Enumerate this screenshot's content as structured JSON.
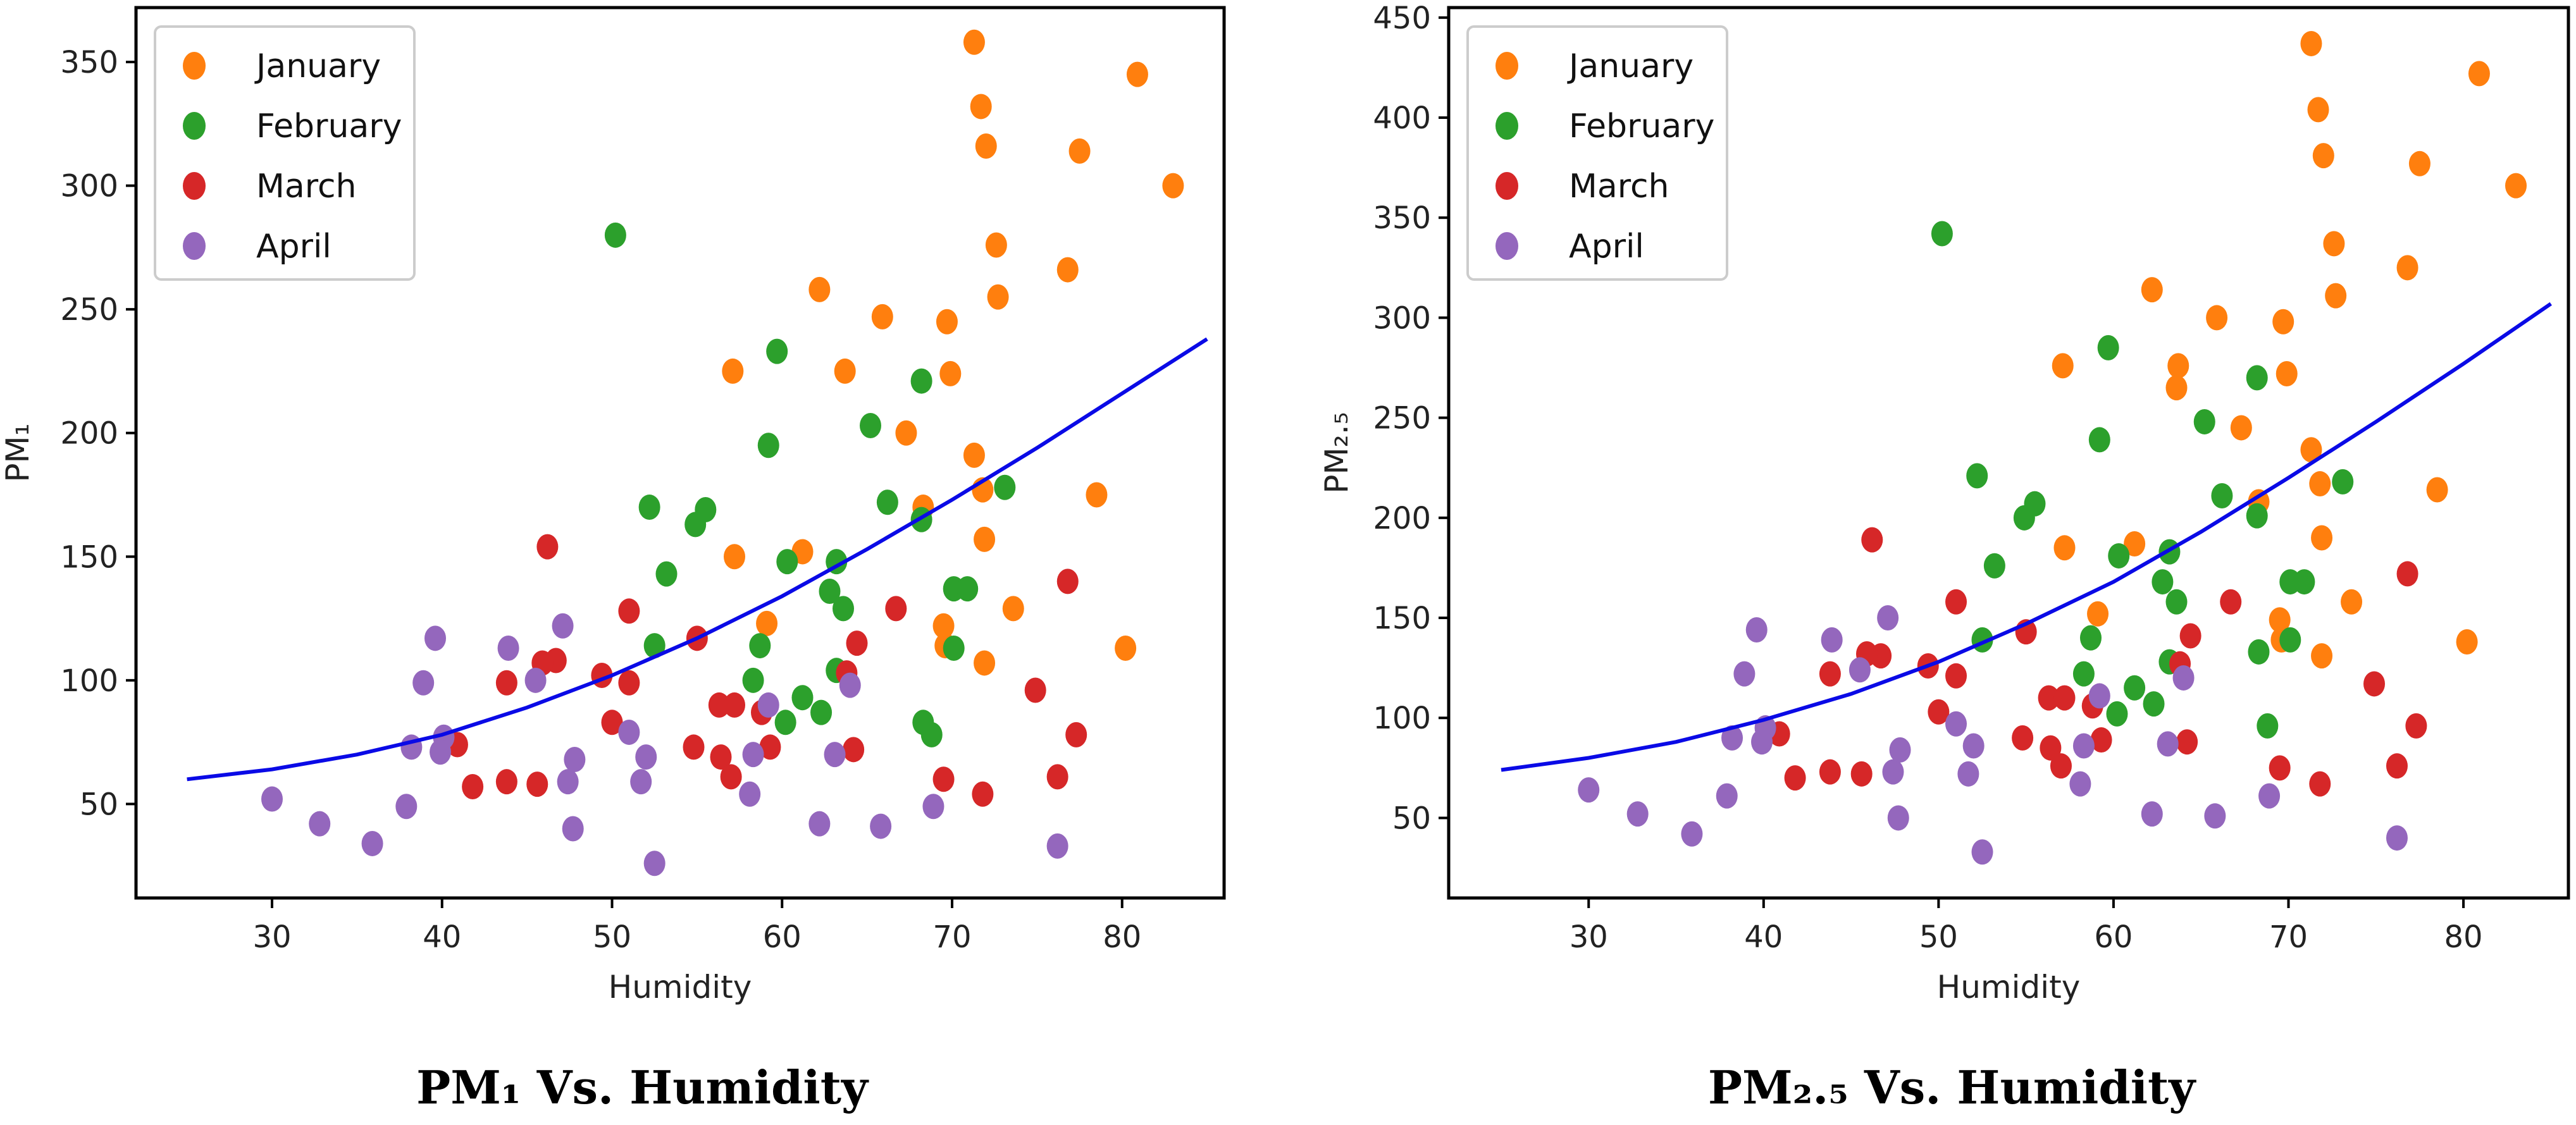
{
  "chart_data": [
    {
      "type": "scatter",
      "title": "",
      "caption": "PM₁ Vs. Humidity",
      "xlabel": "Humidity",
      "ylabel": "PM₁",
      "xlim": [
        22,
        86
      ],
      "ylim": [
        12,
        372
      ],
      "xticks": [
        30,
        40,
        50,
        60,
        70,
        80
      ],
      "yticks": [
        50,
        100,
        150,
        200,
        250,
        300,
        350
      ],
      "grid": false,
      "legend": "top-left",
      "series": [
        {
          "name": "January",
          "color": "#ff7f0e",
          "points": [
            [
              71.3,
              358
            ],
            [
              71.7,
              332
            ],
            [
              72.0,
              316
            ],
            [
              72.6,
              276
            ],
            [
              72.7,
              255
            ],
            [
              80.9,
              345
            ],
            [
              83.0,
              300
            ],
            [
              77.5,
              314
            ],
            [
              76.8,
              266
            ],
            [
              62.2,
              258
            ],
            [
              65.9,
              247
            ],
            [
              69.7,
              245
            ],
            [
              57.1,
              225
            ],
            [
              63.7,
              225
            ],
            [
              69.9,
              224
            ],
            [
              67.3,
              200
            ],
            [
              71.3,
              191
            ],
            [
              71.8,
              177
            ],
            [
              78.5,
              175
            ],
            [
              68.3,
              170
            ],
            [
              71.9,
              157
            ],
            [
              57.2,
              150
            ],
            [
              61.2,
              152
            ],
            [
              73.6,
              129
            ],
            [
              59.1,
              123
            ],
            [
              69.5,
              122
            ],
            [
              69.6,
              114
            ],
            [
              80.2,
              113
            ],
            [
              71.9,
              107
            ]
          ]
        },
        {
          "name": "February",
          "color": "#2ca02c",
          "points": [
            [
              50.2,
              280
            ],
            [
              59.7,
              233
            ],
            [
              68.2,
              221
            ],
            [
              59.2,
              195
            ],
            [
              65.2,
              203
            ],
            [
              52.2,
              170
            ],
            [
              55.5,
              169
            ],
            [
              54.9,
              163
            ],
            [
              73.1,
              178
            ],
            [
              66.2,
              172
            ],
            [
              68.2,
              165
            ],
            [
              53.2,
              143
            ],
            [
              60.3,
              148
            ],
            [
              63.2,
              148
            ],
            [
              62.8,
              136
            ],
            [
              70.1,
              137
            ],
            [
              70.9,
              137
            ],
            [
              63.6,
              129
            ],
            [
              52.5,
              114
            ],
            [
              58.7,
              114
            ],
            [
              63.2,
              104
            ],
            [
              70.1,
              113
            ],
            [
              58.3,
              100
            ],
            [
              62.3,
              87
            ],
            [
              61.2,
              93
            ],
            [
              60.2,
              83
            ],
            [
              68.3,
              83
            ],
            [
              68.8,
              78
            ]
          ]
        },
        {
          "name": "March",
          "color": "#d62728",
          "points": [
            [
              46.2,
              154
            ],
            [
              51.0,
              128
            ],
            [
              66.7,
              129
            ],
            [
              76.8,
              140
            ],
            [
              46.7,
              108
            ],
            [
              45.9,
              107
            ],
            [
              55.0,
              117
            ],
            [
              64.4,
              115
            ],
            [
              43.8,
              99
            ],
            [
              49.4,
              102
            ],
            [
              51.0,
              99
            ],
            [
              63.8,
              103
            ],
            [
              74.9,
              96
            ],
            [
              50.0,
              83
            ],
            [
              56.3,
              90
            ],
            [
              57.2,
              90
            ],
            [
              58.8,
              87
            ],
            [
              40.9,
              74
            ],
            [
              54.8,
              73
            ],
            [
              56.4,
              69
            ],
            [
              59.3,
              73
            ],
            [
              64.2,
              72
            ],
            [
              77.3,
              78
            ],
            [
              41.8,
              57
            ],
            [
              43.8,
              59
            ],
            [
              45.6,
              58
            ],
            [
              57.0,
              61
            ],
            [
              69.5,
              60
            ],
            [
              76.2,
              61
            ],
            [
              71.8,
              54
            ]
          ]
        },
        {
          "name": "April",
          "color": "#9467bd",
          "points": [
            [
              39.6,
              117
            ],
            [
              43.9,
              113
            ],
            [
              47.1,
              122
            ],
            [
              38.9,
              99
            ],
            [
              45.5,
              100
            ],
            [
              40.1,
              77
            ],
            [
              39.9,
              71
            ],
            [
              38.2,
              73
            ],
            [
              47.4,
              59
            ],
            [
              51.0,
              79
            ],
            [
              52.0,
              69
            ],
            [
              58.3,
              70
            ],
            [
              59.2,
              90
            ],
            [
              63.1,
              70
            ],
            [
              64.0,
              98
            ],
            [
              47.8,
              68
            ],
            [
              37.9,
              49
            ],
            [
              30.0,
              52
            ],
            [
              32.8,
              42
            ],
            [
              35.9,
              34
            ],
            [
              47.7,
              40
            ],
            [
              51.7,
              59
            ],
            [
              58.1,
              54
            ],
            [
              62.2,
              42
            ],
            [
              65.8,
              41
            ],
            [
              68.9,
              49
            ],
            [
              76.2,
              33
            ],
            [
              52.5,
              26
            ]
          ]
        }
      ],
      "fit_curve": {
        "x": [
          25,
          30,
          35,
          40,
          45,
          50,
          55,
          60,
          65,
          70,
          75,
          80,
          85
        ],
        "y": [
          60,
          64,
          70,
          78,
          89,
          102,
          117,
          134,
          153,
          173,
          194,
          216,
          238
        ]
      }
    },
    {
      "type": "scatter",
      "title": "",
      "caption": "PM₂.₅ Vs. Humidity",
      "xlabel": "Humidity",
      "ylabel": "PM₂.₅",
      "xlim": [
        22,
        86
      ],
      "ylim": [
        10,
        455
      ],
      "xticks": [
        30,
        40,
        50,
        60,
        70,
        80
      ],
      "yticks": [
        50,
        100,
        150,
        200,
        250,
        300,
        350,
        400,
        450
      ],
      "grid": false,
      "legend": "top-left",
      "series": [
        {
          "name": "January",
          "color": "#ff7f0e",
          "points": [
            [
              71.3,
              437
            ],
            [
              71.7,
              404
            ],
            [
              72.0,
              381
            ],
            [
              72.6,
              337
            ],
            [
              72.7,
              311
            ],
            [
              80.9,
              422
            ],
            [
              83.0,
              366
            ],
            [
              77.5,
              377
            ],
            [
              76.8,
              325
            ],
            [
              62.2,
              314
            ],
            [
              65.9,
              300
            ],
            [
              69.7,
              298
            ],
            [
              57.1,
              276
            ],
            [
              63.7,
              276
            ],
            [
              69.9,
              272
            ],
            [
              67.3,
              245
            ],
            [
              71.3,
              234
            ],
            [
              71.8,
              217
            ],
            [
              78.5,
              214
            ],
            [
              68.3,
              208
            ],
            [
              71.9,
              190
            ],
            [
              57.2,
              185
            ],
            [
              61.2,
              187
            ],
            [
              73.6,
              158
            ],
            [
              59.1,
              152
            ],
            [
              69.5,
              149
            ],
            [
              69.6,
              139
            ],
            [
              80.2,
              138
            ],
            [
              71.9,
              131
            ],
            [
              63.6,
              265
            ]
          ]
        },
        {
          "name": "February",
          "color": "#2ca02c",
          "points": [
            [
              50.2,
              342
            ],
            [
              59.7,
              285
            ],
            [
              68.2,
              270
            ],
            [
              59.2,
              239
            ],
            [
              65.2,
              248
            ],
            [
              52.2,
              221
            ],
            [
              55.5,
              207
            ],
            [
              54.9,
              200
            ],
            [
              73.1,
              218
            ],
            [
              66.2,
              211
            ],
            [
              68.2,
              201
            ],
            [
              53.2,
              176
            ],
            [
              60.3,
              181
            ],
            [
              63.2,
              183
            ],
            [
              62.8,
              168
            ],
            [
              70.1,
              168
            ],
            [
              70.9,
              168
            ],
            [
              63.6,
              158
            ],
            [
              52.5,
              139
            ],
            [
              58.7,
              140
            ],
            [
              63.2,
              128
            ],
            [
              70.1,
              139
            ],
            [
              58.3,
              122
            ],
            [
              62.3,
              107
            ],
            [
              61.2,
              115
            ],
            [
              60.2,
              102
            ],
            [
              68.3,
              133
            ],
            [
              68.8,
              96
            ]
          ]
        },
        {
          "name": "March",
          "color": "#d62728",
          "points": [
            [
              46.2,
              189
            ],
            [
              51.0,
              158
            ],
            [
              66.7,
              158
            ],
            [
              76.8,
              172
            ],
            [
              46.7,
              131
            ],
            [
              45.9,
              132
            ],
            [
              55.0,
              143
            ],
            [
              64.4,
              141
            ],
            [
              43.8,
              122
            ],
            [
              49.4,
              126
            ],
            [
              51.0,
              121
            ],
            [
              63.8,
              127
            ],
            [
              74.9,
              117
            ],
            [
              50.0,
              103
            ],
            [
              56.3,
              110
            ],
            [
              57.2,
              110
            ],
            [
              58.8,
              106
            ],
            [
              40.9,
              92
            ],
            [
              54.8,
              90
            ],
            [
              56.4,
              85
            ],
            [
              59.3,
              89
            ],
            [
              64.2,
              88
            ],
            [
              77.3,
              96
            ],
            [
              41.8,
              70
            ],
            [
              43.8,
              73
            ],
            [
              45.6,
              72
            ],
            [
              57.0,
              76
            ],
            [
              69.5,
              75
            ],
            [
              76.2,
              76
            ],
            [
              71.8,
              67
            ]
          ]
        },
        {
          "name": "April",
          "color": "#9467bd",
          "points": [
            [
              39.6,
              144
            ],
            [
              43.9,
              139
            ],
            [
              47.1,
              150
            ],
            [
              38.9,
              122
            ],
            [
              45.5,
              124
            ],
            [
              40.1,
              95
            ],
            [
              39.9,
              88
            ],
            [
              38.2,
              90
            ],
            [
              47.4,
              73
            ],
            [
              51.0,
              97
            ],
            [
              52.0,
              86
            ],
            [
              58.3,
              86
            ],
            [
              59.2,
              111
            ],
            [
              63.1,
              87
            ],
            [
              64.0,
              120
            ],
            [
              47.8,
              84
            ],
            [
              37.9,
              61
            ],
            [
              30.0,
              64
            ],
            [
              32.8,
              52
            ],
            [
              35.9,
              42
            ],
            [
              47.7,
              50
            ],
            [
              51.7,
              72
            ],
            [
              58.1,
              67
            ],
            [
              62.2,
              52
            ],
            [
              65.8,
              51
            ],
            [
              68.9,
              61
            ],
            [
              76.2,
              40
            ],
            [
              52.5,
              33
            ]
          ]
        }
      ],
      "fit_curve": {
        "x": [
          25,
          30,
          35,
          40,
          45,
          50,
          55,
          60,
          65,
          70,
          75,
          80,
          85
        ],
        "y": [
          74,
          80,
          88,
          99,
          112,
          128,
          147,
          168,
          193,
          220,
          248,
          277,
          307
        ]
      }
    }
  ]
}
